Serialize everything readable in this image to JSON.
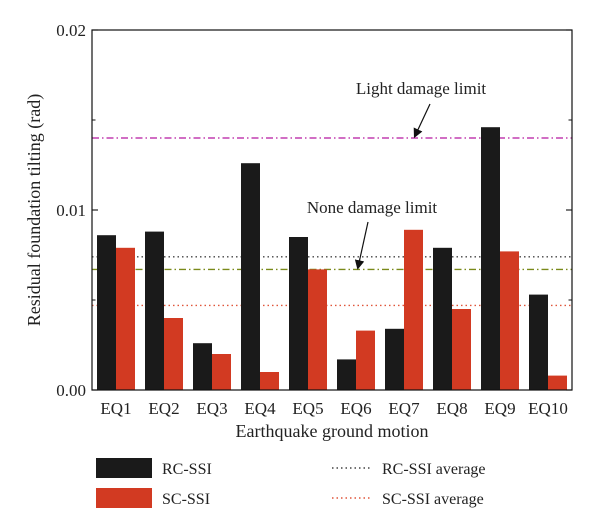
{
  "chart_data": {
    "type": "bar",
    "title": "",
    "xlabel": "Earthquake ground motion",
    "ylabel": "Residual foundation tilting (rad)",
    "ylim": [
      0,
      0.02
    ],
    "yticks": [
      0,
      0.01,
      0.02
    ],
    "ytick_labels": [
      "0.00",
      "0.01",
      "0.02"
    ],
    "grid": false,
    "legend_position": "bottom",
    "categories": [
      "EQ1",
      "EQ2",
      "EQ3",
      "EQ4",
      "EQ5",
      "EQ6",
      "EQ7",
      "EQ8",
      "EQ9",
      "EQ10"
    ],
    "series": [
      {
        "name": "RC-SSI",
        "color": "#1a1a1a",
        "values": [
          0.0086,
          0.0088,
          0.0026,
          0.0126,
          0.0085,
          0.0017,
          0.0034,
          0.0079,
          0.0146,
          0.0053
        ]
      },
      {
        "name": "SC-SSI",
        "color": "#d23a22",
        "values": [
          0.0079,
          0.004,
          0.002,
          0.001,
          0.0067,
          0.0033,
          0.0089,
          0.0045,
          0.0077,
          0.0008
        ]
      }
    ],
    "reference_lines": [
      {
        "name": "Light damage limit",
        "value": 0.014,
        "color": "#c23fb0",
        "style": "dash-dot"
      },
      {
        "name": "None damage limit",
        "value": 0.0067,
        "color": "#7a8a1a",
        "style": "dash-dot"
      },
      {
        "name": "RC-SSI average",
        "value": 0.0074,
        "color": "#444444",
        "style": "dotted"
      },
      {
        "name": "SC-SSI average",
        "value": 0.0047,
        "color": "#e0553a",
        "style": "dotted"
      }
    ],
    "annotations": [
      {
        "text": "Light damage limit",
        "target": "Light damage limit"
      },
      {
        "text": "None damage limit",
        "target": "None damage limit"
      }
    ]
  }
}
